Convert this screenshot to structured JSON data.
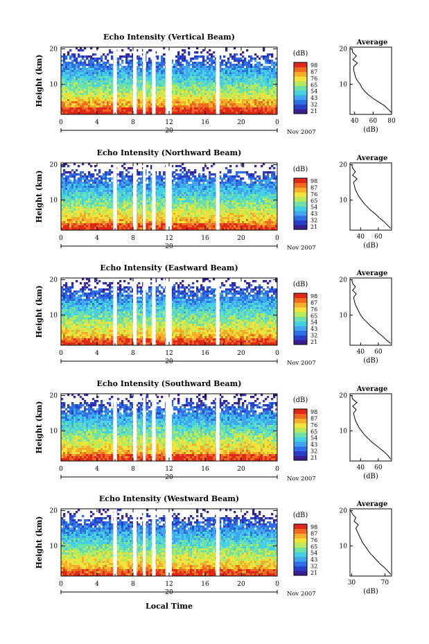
{
  "figure": {
    "xlabel": "Local Time",
    "date_label": "Nov 2007",
    "day_label": "20",
    "ylabel": "Height (km)",
    "colorbar_label": "(dB)",
    "avg_title": "Average",
    "avg_xlabel": "(dB)"
  },
  "palette": [
    "#3a1f8f",
    "#2a3fc8",
    "#2f6fe6",
    "#3fa6ef",
    "#46d0e3",
    "#6fe0a8",
    "#b6ea5c",
    "#f2e23c",
    "#f6ad2a",
    "#ef6a1f",
    "#e0281a"
  ],
  "chart_data": [
    {
      "type": "heatmap",
      "title": "Echo Intensity (Vertical Beam)",
      "xlabel": "Local Time",
      "ylabel": "Height (km)",
      "x_ticks": [
        "0",
        "4",
        "8",
        "12",
        "16",
        "20",
        "0"
      ],
      "xlim": [
        0,
        24
      ],
      "y_ticks": [
        "10",
        "20"
      ],
      "ylim": [
        1.5,
        20.5
      ],
      "colorbar_ticks": [
        "98",
        "87",
        "76",
        "65",
        "54",
        "43",
        "32",
        "21"
      ],
      "colorbar_range": [
        21,
        98
      ],
      "gaps_hours": [
        [
          5.8,
          6.2
        ],
        [
          8.0,
          8.4
        ],
        [
          9.1,
          9.4
        ],
        [
          10.1,
          10.5
        ],
        [
          11.6,
          12.3
        ],
        [
          17.2,
          17.6
        ]
      ],
      "profile": {
        "title": "Average",
        "xlabel": "(dB)",
        "x_ticks": [
          "40",
          "60",
          "80"
        ],
        "xlim": [
          35,
          80
        ],
        "y_ticks": [
          "10",
          "20"
        ],
        "ylim": [
          1.5,
          20.5
        ],
        "height_km": [
          2,
          3,
          4,
          5,
          6,
          7,
          8,
          9,
          10,
          11,
          12,
          13,
          14,
          15,
          16,
          17,
          18,
          19,
          20
        ],
        "power_db": [
          80,
          76,
          72,
          66,
          60,
          55,
          51,
          48,
          46,
          43,
          41,
          40,
          39,
          39,
          43,
          38,
          42,
          38,
          37
        ]
      }
    },
    {
      "type": "heatmap",
      "title": "Echo Intensity (Northward Beam)",
      "xlabel": "Local Time",
      "ylabel": "Height (km)",
      "x_ticks": [
        "0",
        "4",
        "8",
        "12",
        "16",
        "20",
        "0"
      ],
      "xlim": [
        0,
        24
      ],
      "y_ticks": [
        "10",
        "20"
      ],
      "ylim": [
        1.5,
        20.5
      ],
      "colorbar_ticks": [
        "98",
        "87",
        "76",
        "65",
        "54",
        "43",
        "32",
        "21"
      ],
      "colorbar_range": [
        21,
        98
      ],
      "gaps_hours": [
        [
          5.8,
          6.2
        ],
        [
          8.0,
          8.4
        ],
        [
          9.1,
          9.4
        ],
        [
          10.1,
          10.5
        ],
        [
          11.6,
          12.3
        ],
        [
          17.2,
          17.6
        ]
      ],
      "profile": {
        "title": "Average",
        "xlabel": "(dB)",
        "x_ticks": [
          "40",
          "60"
        ],
        "xlim": [
          28,
          75
        ],
        "y_ticks": [
          "10",
          "20"
        ],
        "ylim": [
          1.5,
          20.5
        ],
        "height_km": [
          2,
          3,
          4,
          5,
          6,
          7,
          8,
          9,
          10,
          11,
          12,
          13,
          14,
          15,
          16,
          17,
          18,
          19,
          20
        ],
        "power_db": [
          74,
          70,
          66,
          61,
          57,
          52,
          48,
          44,
          41,
          38,
          36,
          34,
          33,
          32,
          36,
          31,
          34,
          31,
          30
        ]
      }
    },
    {
      "type": "heatmap",
      "title": "Echo Intensity (Eastward Beam)",
      "xlabel": "Local Time",
      "ylabel": "Height (km)",
      "x_ticks": [
        "0",
        "4",
        "8",
        "12",
        "16",
        "20",
        "0"
      ],
      "xlim": [
        0,
        24
      ],
      "y_ticks": [
        "10",
        "20"
      ],
      "ylim": [
        1.5,
        20.5
      ],
      "colorbar_ticks": [
        "98",
        "87",
        "76",
        "65",
        "54",
        "43",
        "32",
        "21"
      ],
      "colorbar_range": [
        21,
        98
      ],
      "gaps_hours": [
        [
          5.8,
          6.2
        ],
        [
          8.0,
          8.4
        ],
        [
          9.1,
          9.4
        ],
        [
          10.1,
          10.5
        ],
        [
          11.6,
          12.3
        ],
        [
          17.2,
          17.6
        ]
      ],
      "profile": {
        "title": "Average",
        "xlabel": "(dB)",
        "x_ticks": [
          "40",
          "60"
        ],
        "xlim": [
          28,
          75
        ],
        "y_ticks": [
          "10",
          "20"
        ],
        "ylim": [
          1.5,
          20.5
        ],
        "height_km": [
          2,
          3,
          4,
          5,
          6,
          7,
          8,
          9,
          10,
          11,
          12,
          13,
          14,
          15,
          16,
          17,
          18,
          19,
          20
        ],
        "power_db": [
          74,
          69,
          65,
          60,
          56,
          51,
          47,
          43,
          40,
          38,
          36,
          34,
          33,
          32,
          35,
          31,
          34,
          31,
          30
        ]
      }
    },
    {
      "type": "heatmap",
      "title": "Echo Intensity (Southward Beam)",
      "xlabel": "Local Time",
      "ylabel": "Height (km)",
      "x_ticks": [
        "0",
        "4",
        "8",
        "12",
        "16",
        "20",
        "0"
      ],
      "xlim": [
        0,
        24
      ],
      "y_ticks": [
        "10",
        "20"
      ],
      "ylim": [
        1.5,
        20.5
      ],
      "colorbar_ticks": [
        "98",
        "87",
        "76",
        "65",
        "54",
        "43",
        "32",
        "21"
      ],
      "colorbar_range": [
        21,
        98
      ],
      "gaps_hours": [
        [
          5.8,
          6.2
        ],
        [
          8.0,
          8.4
        ],
        [
          9.1,
          9.4
        ],
        [
          10.1,
          10.5
        ],
        [
          11.6,
          12.3
        ],
        [
          17.2,
          17.6
        ]
      ],
      "profile": {
        "title": "Average",
        "xlabel": "(dB)",
        "x_ticks": [
          "40",
          "60"
        ],
        "xlim": [
          28,
          75
        ],
        "y_ticks": [
          "10",
          "20"
        ],
        "ylim": [
          1.5,
          20.5
        ],
        "height_km": [
          2,
          3,
          4,
          5,
          6,
          7,
          8,
          9,
          10,
          11,
          12,
          13,
          14,
          15,
          16,
          17,
          18,
          19,
          20
        ],
        "power_db": [
          74,
          71,
          67,
          62,
          57,
          52,
          48,
          44,
          41,
          38,
          36,
          34,
          33,
          32,
          35,
          31,
          36,
          31,
          30
        ]
      }
    },
    {
      "type": "heatmap",
      "title": "Echo Intensity (Westward Beam)",
      "xlabel": "Local Time",
      "ylabel": "Height (km)",
      "x_ticks": [
        "0",
        "4",
        "8",
        "12",
        "16",
        "20",
        "0"
      ],
      "xlim": [
        0,
        24
      ],
      "y_ticks": [
        "10",
        "20"
      ],
      "ylim": [
        1.5,
        20.5
      ],
      "colorbar_ticks": [
        "98",
        "87",
        "76",
        "65",
        "54",
        "43",
        "32",
        "21"
      ],
      "colorbar_range": [
        21,
        98
      ],
      "gaps_hours": [
        [
          5.8,
          6.2
        ],
        [
          8.0,
          8.4
        ],
        [
          9.1,
          9.4
        ],
        [
          10.1,
          10.5
        ],
        [
          11.6,
          12.3
        ],
        [
          17.2,
          17.6
        ]
      ],
      "profile": {
        "title": "Average",
        "xlabel": "(dB)",
        "x_ticks": [
          "30",
          "70"
        ],
        "xlim": [
          28,
          78
        ],
        "y_ticks": [
          "10",
          "20"
        ],
        "ylim": [
          1.5,
          20.5
        ],
        "height_km": [
          2,
          3,
          4,
          5,
          6,
          7,
          8,
          9,
          10,
          11,
          12,
          13,
          14,
          15,
          16,
          17,
          18,
          19,
          20
        ],
        "power_db": [
          77,
          73,
          69,
          64,
          60,
          56,
          52,
          49,
          46,
          43,
          41,
          39,
          37,
          35,
          38,
          33,
          35,
          31,
          29
        ]
      }
    }
  ]
}
